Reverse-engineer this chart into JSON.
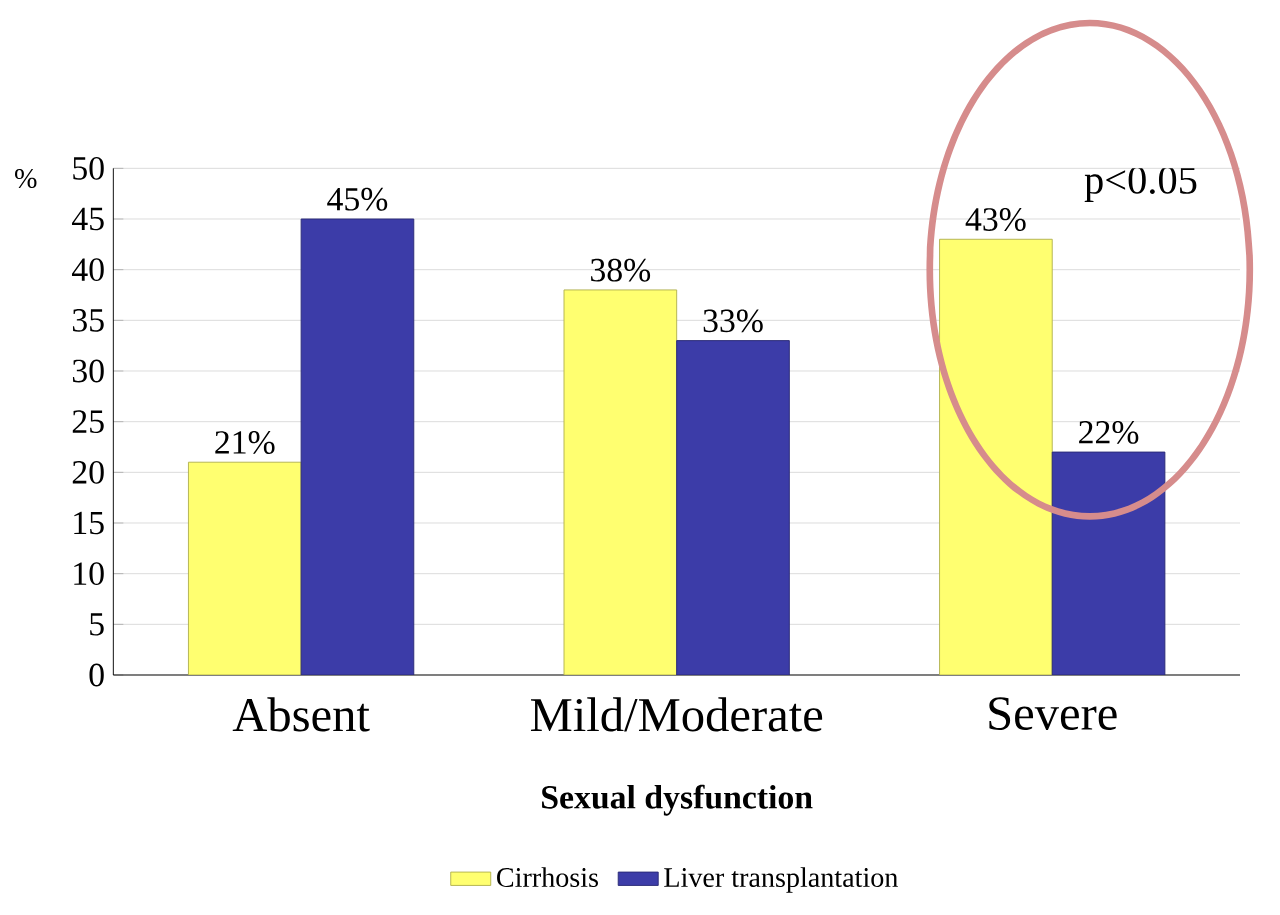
{
  "chart_data": {
    "type": "bar",
    "xlabel": "Sexual dysfunction",
    "ylabel": "%",
    "categories": [
      "Absent",
      "Mild/Moderate",
      "Severe"
    ],
    "series": [
      {
        "name": "Cirrhosis",
        "color": "#ffff70",
        "values": [
          21,
          38,
          43
        ],
        "value_labels": [
          "21%",
          "38%",
          "43%"
        ]
      },
      {
        "name": "Liver transplantation",
        "color": "#3c3ca8",
        "values": [
          45,
          33,
          22
        ],
        "value_labels": [
          "45%",
          "33%",
          "22%"
        ]
      }
    ],
    "ylim": [
      0,
      50
    ],
    "yticks": [
      0,
      5,
      10,
      15,
      20,
      25,
      30,
      35,
      40,
      45,
      50
    ],
    "grid": "y",
    "legend": "bottom",
    "annotations": [
      "p<0.05"
    ]
  }
}
